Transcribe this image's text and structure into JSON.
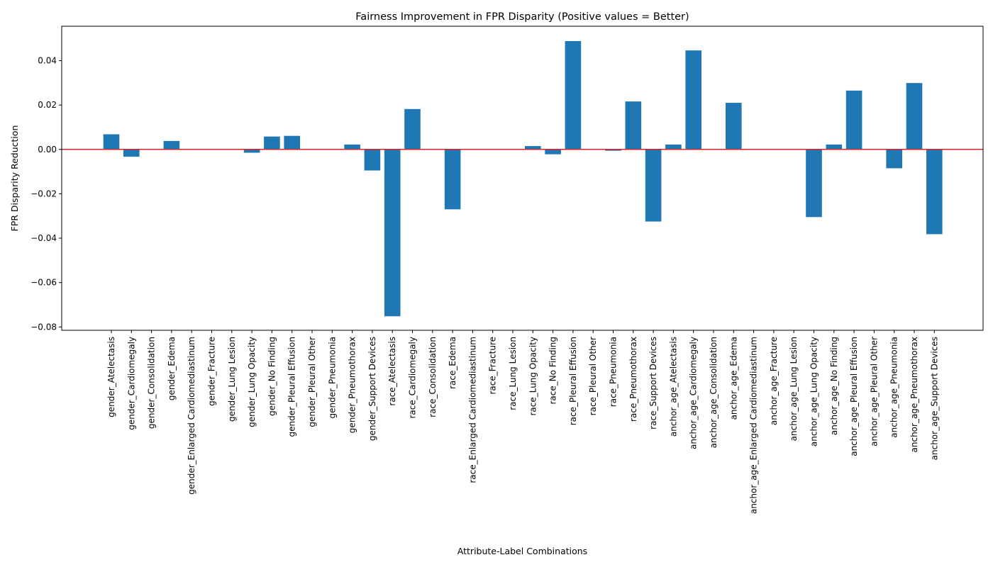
{
  "chart_data": {
    "type": "bar",
    "title": "Fairness Improvement in FPR Disparity (Positive values = Better)",
    "xlabel": "Attribute-Label Combinations",
    "ylabel": "FPR Disparity Reduction",
    "ylim": [
      -0.0815,
      0.0555
    ],
    "yticks": [
      -0.08,
      -0.06,
      -0.04,
      -0.02,
      0.0,
      0.02,
      0.04
    ],
    "ytick_labels": [
      "−0.08",
      "−0.06",
      "−0.04",
      "−0.02",
      "0.00",
      "0.02",
      "0.04"
    ],
    "grid": false,
    "bar_color": "#1f77b4",
    "reference_line": {
      "y": 0,
      "color": "#d62728"
    },
    "categories": [
      "gender_Atelectasis",
      "gender_Cardiomegaly",
      "gender_Consolidation",
      "gender_Edema",
      "gender_Enlarged Cardiomediastinum",
      "gender_Fracture",
      "gender_Lung Lesion",
      "gender_Lung Opacity",
      "gender_No Finding",
      "gender_Pleural Effusion",
      "gender_Pleural Other",
      "gender_Pneumonia",
      "gender_Pneumothorax",
      "gender_Support Devices",
      "race_Atelectasis",
      "race_Cardiomegaly",
      "race_Consolidation",
      "race_Edema",
      "race_Enlarged Cardiomediastinum",
      "race_Fracture",
      "race_Lung Lesion",
      "race_Lung Opacity",
      "race_No Finding",
      "race_Pleural Effusion",
      "race_Pleural Other",
      "race_Pneumonia",
      "race_Pneumothorax",
      "race_Support Devices",
      "anchor_age_Atelectasis",
      "anchor_age_Cardiomegaly",
      "anchor_age_Consolidation",
      "anchor_age_Edema",
      "anchor_age_Enlarged Cardiomediastinum",
      "anchor_age_Fracture",
      "anchor_age_Lung Lesion",
      "anchor_age_Lung Opacity",
      "anchor_age_No Finding",
      "anchor_age_Pleural Effusion",
      "anchor_age_Pleural Other",
      "anchor_age_Pneumonia",
      "anchor_age_Pneumothorax",
      "anchor_age_Support Devices"
    ],
    "values": [
      0.0068,
      -0.0033,
      0.0,
      0.0038,
      0.0,
      0.0,
      0.0,
      -0.0015,
      0.0058,
      0.0061,
      0.0,
      0.0,
      0.0022,
      -0.0095,
      -0.0752,
      0.0182,
      0.0,
      -0.027,
      0.0,
      0.0,
      0.0,
      0.0015,
      -0.0022,
      0.0488,
      0.0,
      -0.0006,
      0.0216,
      -0.0325,
      0.0022,
      0.0446,
      0.0,
      0.021,
      0.0,
      0.0,
      0.0,
      -0.0305,
      0.0022,
      0.0265,
      0.0,
      -0.0085,
      0.0299,
      -0.0382
    ]
  }
}
